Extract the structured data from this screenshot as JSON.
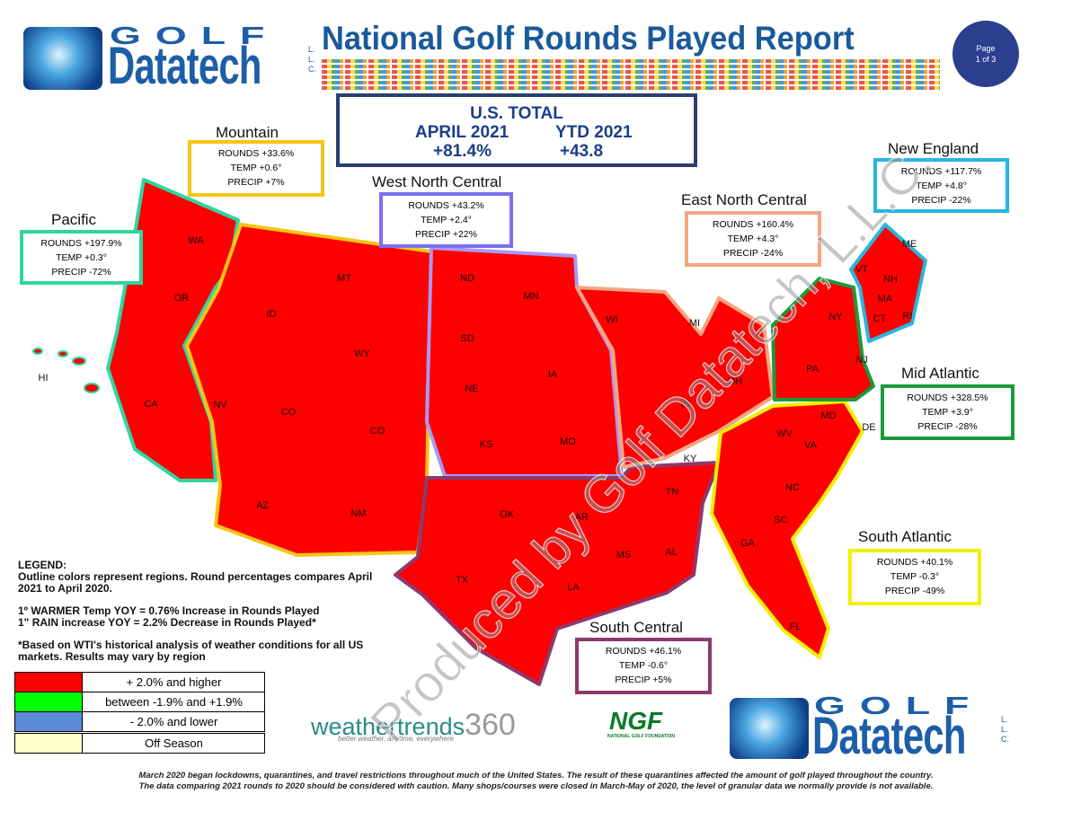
{
  "header": {
    "logo_top": "GOLF",
    "logo_name": "Datatech",
    "logo_suffix": "L.L.C.",
    "title": "National Golf Rounds Played Report",
    "page_label": "Page",
    "page_number": "1 of 3"
  },
  "us_total": {
    "title": "U.S. TOTAL",
    "april_label": "APRIL 2021",
    "ytd_label": "YTD 2021",
    "april_value": "+81.4%",
    "ytd_value": "+43.8"
  },
  "regions": [
    {
      "name": "Mountain",
      "rounds": "ROUNDS +33.6%",
      "temp": "TEMP +0.6°",
      "precip": "PRECIP +7%"
    },
    {
      "name": "Pacific",
      "rounds": "ROUNDS +197.9%",
      "temp": "TEMP +0.3°",
      "precip": "PRECIP -72%"
    },
    {
      "name": "West North Central",
      "rounds": "ROUNDS +43.2%",
      "temp": "TEMP +2.4°",
      "precip": "PRECIP +22%"
    },
    {
      "name": "East North Central",
      "rounds": "ROUNDS +160.4%",
      "temp": "TEMP +4.3°",
      "precip": "PRECIP -24%"
    },
    {
      "name": "New England",
      "rounds": "ROUNDS +117.7%",
      "temp": "TEMP +4.8°",
      "precip": "PRECIP -22%"
    },
    {
      "name": "Mid Atlantic",
      "rounds": "ROUNDS +328.5%",
      "temp": "TEMP +3.9°",
      "precip": "PRECIP -28%"
    },
    {
      "name": "South Atlantic",
      "rounds": "ROUNDS +40.1%",
      "temp": "TEMP -0.3°",
      "precip": "PRECIP -49%"
    },
    {
      "name": "South Central",
      "rounds": "ROUNDS +46.1%",
      "temp": "TEMP -0.6°",
      "precip": "PRECIP +5%"
    }
  ],
  "map": {
    "state_labels": [
      "WA",
      "OR",
      "CA",
      "HI",
      "ID",
      "NV",
      "MT",
      "WY",
      "CO",
      "AZ",
      "NM",
      "CO",
      "ND",
      "SD",
      "NE",
      "KS",
      "MN",
      "IA",
      "MO",
      "WI",
      "MI",
      "IN",
      "OH",
      "KY",
      "TN",
      "OK",
      "TX",
      "AR",
      "LA",
      "MS",
      "AL",
      "GA",
      "FL",
      "SC",
      "NC",
      "VA",
      "WV",
      "MD",
      "DE",
      "PA",
      "NY",
      "NJ",
      "VT",
      "NH",
      "ME",
      "MA",
      "CT",
      "RI"
    ]
  },
  "legend": {
    "title": "LEGEND:",
    "notes": [
      "Outline colors represent regions. Round percentages compares April 2021 to April 2020.",
      "1º WARMER Temp YOY = 0.76% Increase in Rounds Played",
      "1\" RAIN increase YOY = 2.2% Decrease in Rounds Played*",
      "*Based on WTI's historical analysis of weather conditions for all US markets. Results may vary by region"
    ],
    "rows": [
      "+ 2.0% and higher",
      "between -1.9% and +1.9%",
      "- 2.0% and lower",
      "Off Season"
    ]
  },
  "watermark": "Produced by Golf Datatech, L.L.C.",
  "logos": {
    "weather_name": "weathertrends",
    "weather_num": "360",
    "weather_tagline": "better weather, anytime, everywhere",
    "ngf": "NGF",
    "ngf_full": "NATIONAL GOLF FOUNDATION"
  },
  "footer": [
    "March 2020 began lockdowns, quarantines, and travel restrictions throughout much of the United States. The result of these quarantines affected the amount of golf played throughout the country.",
    "The data comparing 2021 rounds to 2020 should be considered with caution. Many shops/courses were closed in March-May of 2020, the level of granular data we normally provide is not available."
  ]
}
